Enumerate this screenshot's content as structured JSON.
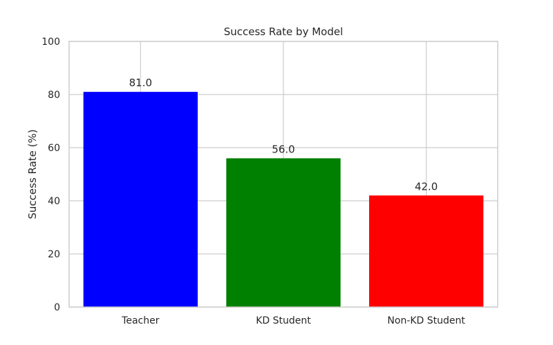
{
  "chart_data": {
    "type": "bar",
    "title": "Success Rate by Model",
    "xlabel": "",
    "ylabel": "Success Rate (%)",
    "categories": [
      "Teacher",
      "KD Student",
      "Non-KD Student"
    ],
    "values": [
      81.0,
      56.0,
      42.0
    ],
    "data_labels": [
      "81.0",
      "56.0",
      "42.0"
    ],
    "colors": [
      "#0000ff",
      "#008000",
      "#ff0000"
    ],
    "ylim": [
      0,
      100
    ],
    "yticks": [
      0,
      20,
      40,
      60,
      80,
      100
    ],
    "grid": true
  }
}
